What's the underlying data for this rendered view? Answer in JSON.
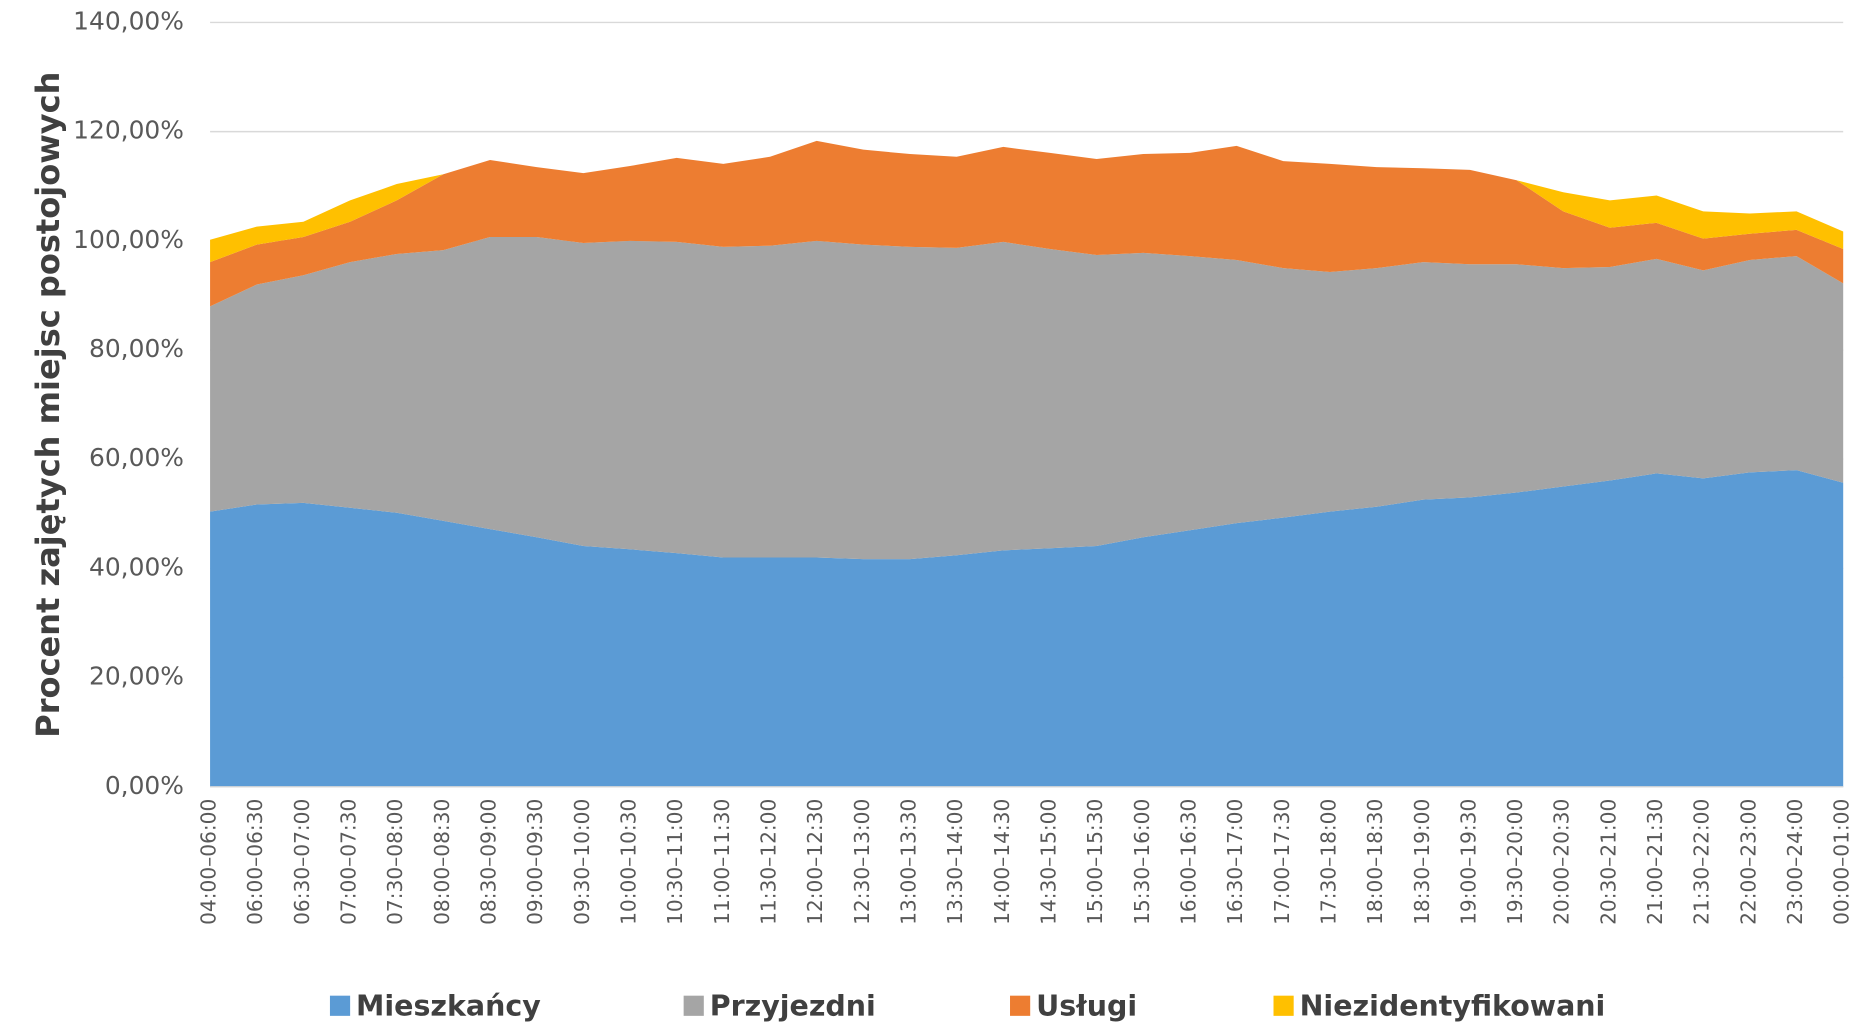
{
  "chart_data": {
    "type": "stacked-area",
    "y_label": "Procent zajętych miejsc postojowych",
    "categories": [
      "04:00–06:00",
      "06:00–06:30",
      "06:30–07:00",
      "07:00–07:30",
      "07:30–08:00",
      "08:00–08:30",
      "08:30–09:00",
      "09:00–09:30",
      "09:30–10:00",
      "10:00–10:30",
      "10:30–11:00",
      "11:00–11:30",
      "11:30–12:00",
      "12:00–12:30",
      "12:30–13:00",
      "13:00–13:30",
      "13:30–14:00",
      "14:00–14:30",
      "14:30–15:00",
      "15:00–15:30",
      "15:30–16:00",
      "16:00–16:30",
      "16:30–17:00",
      "17:00–17:30",
      "17:30–18:00",
      "18:00–18:30",
      "18:30–19:00",
      "19:00–19:30",
      "19:30–20:00",
      "20:00–20:30",
      "20:30–21:00",
      "21:00–21:30",
      "21:30–22:00",
      "22:00–23:00",
      "23:00–24:00",
      "00:00–01:00"
    ],
    "series": [
      {
        "name": "Mieszkańcy",
        "color": "#5b9bd5",
        "values": [
          50.4,
          51.7,
          52.0,
          51.1,
          50.2,
          48.7,
          47.2,
          45.7,
          44.1,
          43.5,
          42.8,
          42.0,
          42.0,
          42.0,
          41.7,
          41.7,
          42.4,
          43.3,
          43.7,
          44.1,
          45.7,
          47.0,
          48.3,
          49.3,
          50.4,
          51.3,
          52.6,
          53.0,
          53.9,
          55.0,
          56.1,
          57.4,
          56.5,
          57.6,
          58.0,
          55.7
        ]
      },
      {
        "name": "Przyjezdni",
        "color": "#a5a5a5",
        "values": [
          37.6,
          40.3,
          41.7,
          45.0,
          47.4,
          49.6,
          53.5,
          55.0,
          55.5,
          56.5,
          57.0,
          56.9,
          57.1,
          58.0,
          57.6,
          57.2,
          56.3,
          56.5,
          54.8,
          53.3,
          52.1,
          50.2,
          48.2,
          45.7,
          43.9,
          43.7,
          43.5,
          42.7,
          41.8,
          40.0,
          39.1,
          39.3,
          38.1,
          38.9,
          39.2,
          36.5
        ]
      },
      {
        "name": "Usługi",
        "color": "#ed7d31",
        "values": [
          8.1,
          7.3,
          7.0,
          7.4,
          9.8,
          13.9,
          14.1,
          12.8,
          12.8,
          13.7,
          15.4,
          15.2,
          16.3,
          18.3,
          17.4,
          17.0,
          16.7,
          17.4,
          17.6,
          17.6,
          18.1,
          18.9,
          20.9,
          19.6,
          19.8,
          18.5,
          17.2,
          17.3,
          15.4,
          10.4,
          7.2,
          6.6,
          5.8,
          4.8,
          4.8,
          6.3
        ]
      },
      {
        "name": "Niezidentyfikowani",
        "color": "#ffc000",
        "values": [
          4.1,
          3.3,
          2.8,
          3.9,
          3.0,
          0,
          0,
          0,
          0,
          0,
          0,
          0,
          0,
          0,
          0,
          0,
          0,
          0,
          0,
          0,
          0,
          0,
          0,
          0,
          0,
          0,
          0,
          0,
          0,
          3.5,
          5.0,
          5.0,
          5.0,
          3.7,
          3.4,
          3.2
        ]
      }
    ],
    "ylim": [
      0,
      140
    ],
    "yticks": [
      {
        "value": 0,
        "label": "0,00%"
      },
      {
        "value": 20,
        "label": "20,00%"
      },
      {
        "value": 40,
        "label": "40,00%"
      },
      {
        "value": 60,
        "label": "60,00%"
      },
      {
        "value": 80,
        "label": "80,00%"
      },
      {
        "value": 100,
        "label": "100,00%"
      },
      {
        "value": 120,
        "label": "120,00%"
      },
      {
        "value": 140,
        "label": "140,00%"
      }
    ],
    "grid": true,
    "legend": "bottom"
  }
}
